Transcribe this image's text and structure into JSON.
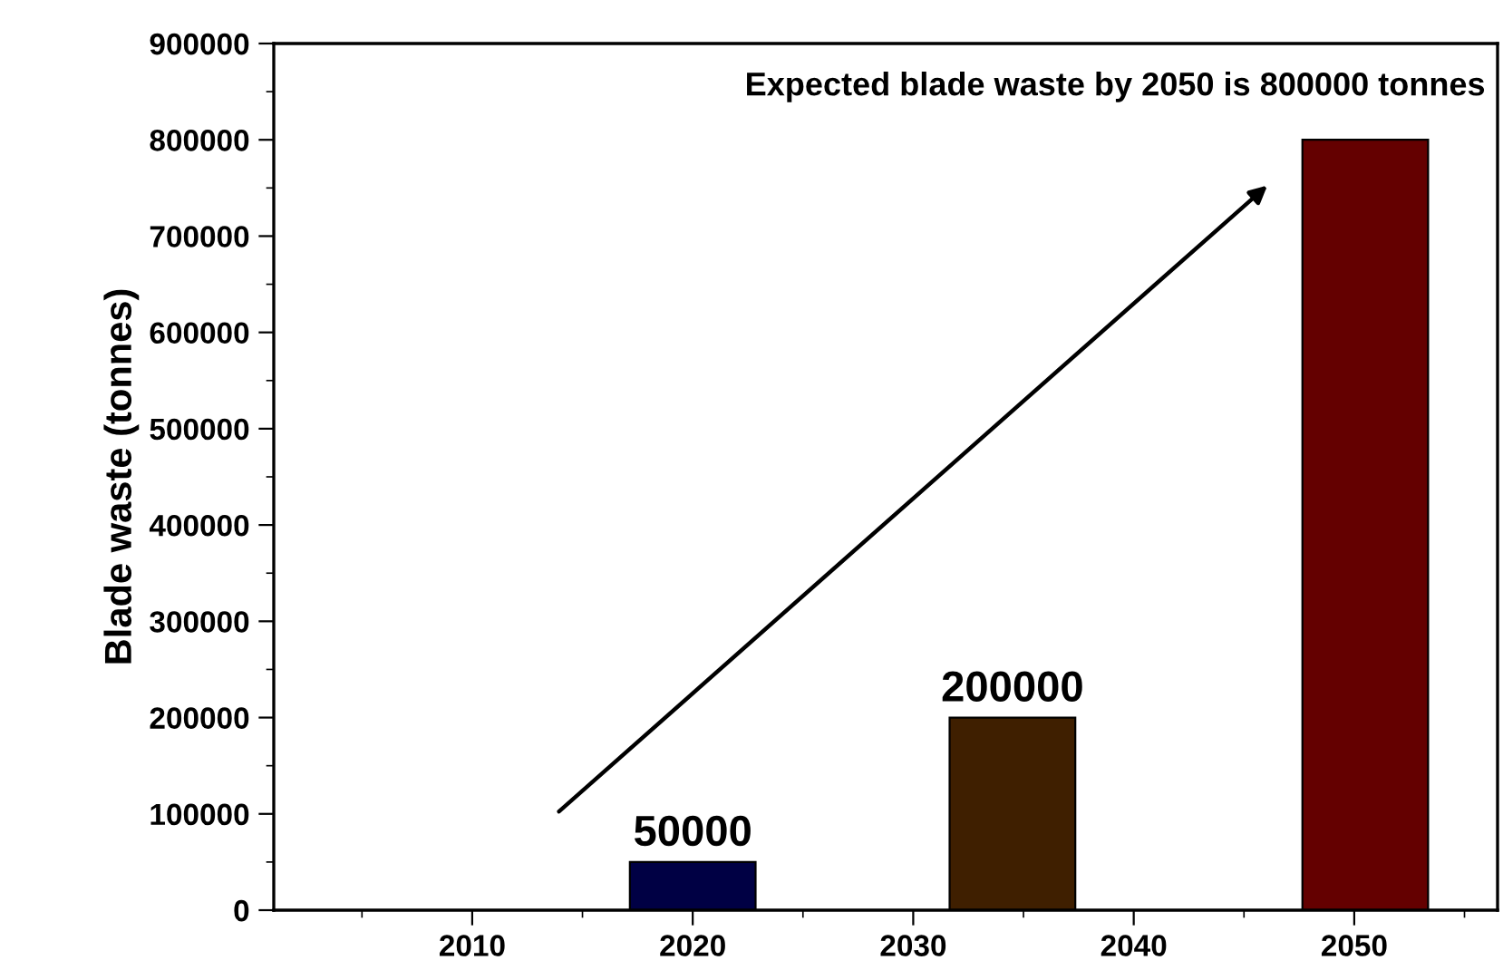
{
  "chart_data": {
    "type": "bar",
    "ylabel": "Blade waste (tonnes)",
    "annotations": [
      "Expected blade waste by 2050 is 800000 tonnes"
    ],
    "x": [
      2020,
      2034.5,
      2050.5
    ],
    "values": [
      50000,
      200000,
      800000
    ],
    "colors": [
      "#000044",
      "#3f1f00",
      "#640000"
    ],
    "value_labels": [
      "50000",
      "200000",
      null
    ],
    "xlim": [
      2001,
      2056.5
    ],
    "xticks": [
      2010,
      2020,
      2030,
      2040,
      2050
    ],
    "ylim": [
      0,
      900000
    ],
    "yticks": [
      0,
      100000,
      200000,
      300000,
      400000,
      500000,
      600000,
      700000,
      800000,
      900000
    ],
    "grid": false,
    "legend": false
  }
}
